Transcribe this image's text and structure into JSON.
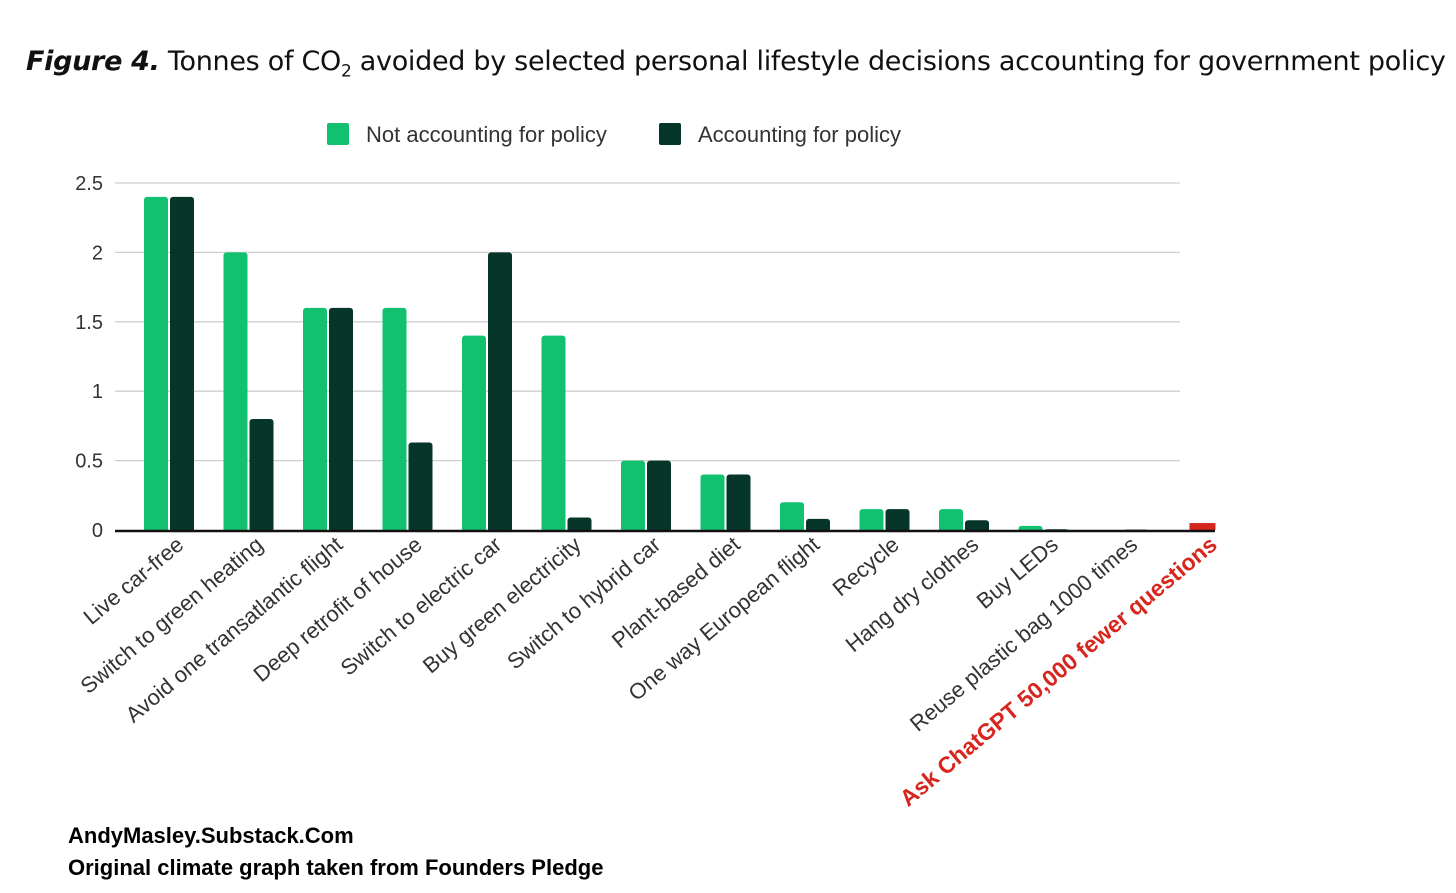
{
  "title": {
    "prefix": "Figure 4.",
    "text_a": "Tonnes of CO",
    "sub": "2",
    "text_b": " avoided by selected personal lifestyle decisions accounting for government policy"
  },
  "credits": {
    "line1": "AndyMasley.Substack.Com",
    "line2": "Original climate graph taken from Founders Pledge"
  },
  "chart_data": {
    "type": "bar",
    "ylim": [
      0,
      2.5
    ],
    "yticks": [
      "0",
      "0.5",
      "1",
      "1.5",
      "2",
      "2.5"
    ],
    "ytick_values": [
      0,
      0.5,
      1,
      1.5,
      2,
      2.5
    ],
    "grid": true,
    "legend_placement": "top",
    "categories": [
      "Live car-free",
      "Switch to green heating",
      "Avoid one transatlantic flight",
      "Deep retrofit of house",
      "Switch to electric car",
      "Buy green electricity",
      "Switch to hybrid car",
      "Plant-based diet",
      "One way European flight",
      "Recycle",
      "Hang dry clothes",
      "Buy LEDs",
      "Reuse plastic bag 1000 times",
      "Ask ChatGPT 50,000 fewer questions"
    ],
    "series": [
      {
        "name": "Not accounting for policy",
        "color": "#12c16f",
        "values": [
          2.4,
          2.0,
          1.6,
          1.6,
          1.4,
          1.4,
          0.5,
          0.4,
          0.2,
          0.15,
          0.15,
          0.03,
          0,
          null
        ]
      },
      {
        "name": "Accounting for policy",
        "color": "#06362a",
        "values": [
          2.4,
          0.8,
          1.6,
          0.63,
          2.0,
          0.09,
          0.5,
          0.4,
          0.08,
          0.15,
          0.07,
          0.005,
          0.003,
          null
        ]
      }
    ],
    "highlight": {
      "category": "Ask ChatGPT 50,000 fewer questions",
      "value": 0.05,
      "color": "#d7261e"
    }
  }
}
